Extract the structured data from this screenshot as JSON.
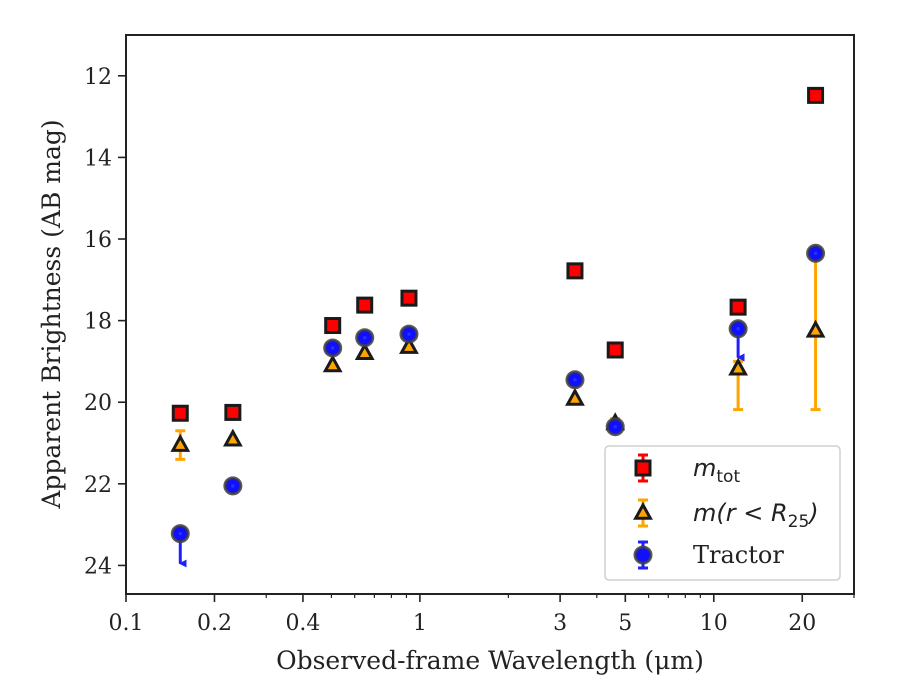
{
  "chart_data": {
    "type": "scatter",
    "title": "",
    "xlabel": "Observed-frame Wavelength (μm)",
    "ylabel": "Apparent Brightness (AB mag)",
    "xscale": "log",
    "xlim": [
      0.1,
      30
    ],
    "ylim": [
      24.7,
      11.0
    ],
    "y_inverted": true,
    "x_ticks": [
      {
        "value": 0.1,
        "label": "0.1"
      },
      {
        "value": 0.2,
        "label": "0.2"
      },
      {
        "value": 0.4,
        "label": "0.4"
      },
      {
        "value": 1,
        "label": "1"
      },
      {
        "value": 3,
        "label": "3"
      },
      {
        "value": 5,
        "label": "5"
      },
      {
        "value": 10,
        "label": "10"
      },
      {
        "value": 20,
        "label": "20"
      }
    ],
    "y_ticks": [
      {
        "value": 12,
        "label": "12"
      },
      {
        "value": 14,
        "label": "14"
      },
      {
        "value": 16,
        "label": "16"
      },
      {
        "value": 18,
        "label": "18"
      },
      {
        "value": 20,
        "label": "20"
      },
      {
        "value": 22,
        "label": "22"
      },
      {
        "value": 24,
        "label": "24"
      }
    ],
    "grid": false,
    "legend_position": "lower-right",
    "series": [
      {
        "name": "m_tot",
        "legend_main": "m",
        "legend_sub": "tot",
        "marker": "square",
        "color": "#ff0000",
        "edge_color": "#1a1a1a",
        "points": [
          {
            "x": 0.153,
            "y": 20.27
          },
          {
            "x": 0.231,
            "y": 20.25
          },
          {
            "x": 0.505,
            "y": 18.12
          },
          {
            "x": 0.649,
            "y": 17.62
          },
          {
            "x": 0.918,
            "y": 17.45
          },
          {
            "x": 3.37,
            "y": 16.78
          },
          {
            "x": 4.62,
            "y": 18.72
          },
          {
            "x": 12.1,
            "y": 17.67
          },
          {
            "x": 22.2,
            "y": 12.48
          }
        ]
      },
      {
        "name": "m(r < R25)",
        "legend_main": "m(r < R",
        "legend_sub": "25",
        "legend_tail": ")",
        "marker": "triangle",
        "color": "#ffa500",
        "edge_color": "#1a1a1a",
        "points": [
          {
            "x": 0.153,
            "y": 21.05,
            "err_low": 20.7,
            "err_high": 21.4
          },
          {
            "x": 0.231,
            "y": 20.92
          },
          {
            "x": 0.505,
            "y": 19.1
          },
          {
            "x": 0.649,
            "y": 18.8
          },
          {
            "x": 0.918,
            "y": 18.65
          },
          {
            "x": 3.37,
            "y": 19.92
          },
          {
            "x": 4.62,
            "y": 20.52,
            "err_low": 20.4,
            "err_high": 20.65
          },
          {
            "x": 12.1,
            "y": 19.18,
            "err_low": 19.0,
            "err_high": 20.18
          },
          {
            "x": 22.2,
            "y": 18.25,
            "err_low": 16.35,
            "err_high": 20.18
          }
        ]
      },
      {
        "name": "Tractor",
        "legend_main": "Tractor",
        "marker": "circle",
        "color": "#1010ff",
        "edge_color": "#404040",
        "points": [
          {
            "x": 0.153,
            "y": 23.22,
            "upper_limit": true,
            "arrow_to": 24.1
          },
          {
            "x": 0.231,
            "y": 22.05
          },
          {
            "x": 0.505,
            "y": 18.67
          },
          {
            "x": 0.649,
            "y": 18.42
          },
          {
            "x": 0.918,
            "y": 18.33
          },
          {
            "x": 3.37,
            "y": 19.45
          },
          {
            "x": 4.62,
            "y": 20.6
          },
          {
            "x": 12.1,
            "y": 18.2,
            "upper_limit": true,
            "arrow_to": 19.05
          },
          {
            "x": 22.2,
            "y": 16.35
          }
        ]
      }
    ]
  }
}
